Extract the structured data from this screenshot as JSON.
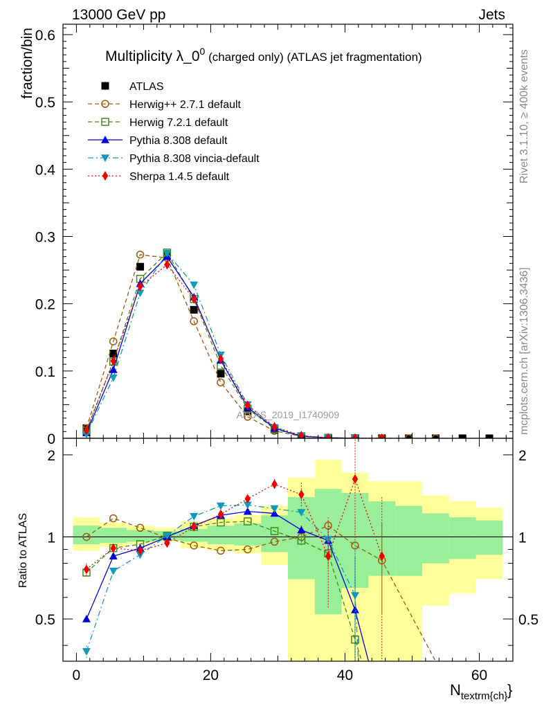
{
  "header": {
    "left": "13000 GeV pp",
    "right": "Jets"
  },
  "side_labels": {
    "rivet": "Rivet 3.1.10, ≥ 400k events",
    "mcplots": "mcplots.cern.ch [arXiv:1306.3436]"
  },
  "watermark": "ATLAS_2019_I1740909",
  "chart_data": [
    {
      "type": "line",
      "title": "Multiplicity λ_0",
      "title_sup": "0",
      "title_suffix": " (charged only) (ATLAS jet fragmentation)",
      "ylabel": "fraction/bin",
      "xlim": [
        -2,
        65
      ],
      "ylim": [
        0,
        0.6
      ],
      "yticks": [
        "0",
        "0.1",
        "0.2",
        "0.3",
        "0.4",
        "0.5",
        "0.6"
      ],
      "legend_position": "top-left",
      "series": [
        {
          "name": "ATLAS",
          "color": "#000000",
          "marker": "square-filled",
          "line": "none",
          "x": [
            1.5,
            5.5,
            9.5,
            13.5,
            17.5,
            21.5,
            25.5,
            29.5,
            33.5,
            37.5,
            41.5,
            45.5,
            49.5,
            53.5,
            57.5,
            61.5
          ],
          "y": [
            0.015,
            0.126,
            0.255,
            0.272,
            0.191,
            0.096,
            0.04,
            0.013,
            0.003,
            0.0008,
            0.0002,
            5e-05,
            2e-05,
            1e-05,
            5e-06,
            2e-06
          ]
        },
        {
          "name": "Herwig++ 2.7.1 default",
          "color": "#a05a0a",
          "marker": "circle-open",
          "line": "dashed",
          "x": [
            1.5,
            5.5,
            9.5,
            13.5,
            17.5,
            21.5,
            25.5,
            29.5,
            33.5,
            37.5,
            41.5,
            45.5,
            49.5,
            53.5
          ],
          "y": [
            0.015,
            0.144,
            0.273,
            0.268,
            0.174,
            0.083,
            0.032,
            0.011,
            0.003,
            0.0008,
            0.0002,
            5e-05,
            2e-05,
            1e-05
          ]
        },
        {
          "name": "Herwig 7.2.1 default",
          "color": "#3e8a1a",
          "marker": "square-open",
          "line": "dashed",
          "x": [
            1.5,
            5.5,
            9.5,
            13.5,
            17.5,
            21.5,
            25.5,
            29.5,
            33.5,
            37.5,
            41.5
          ],
          "y": [
            0.011,
            0.114,
            0.237,
            0.276,
            0.207,
            0.108,
            0.044,
            0.014,
            0.003,
            0.0007,
            0.0001
          ]
        },
        {
          "name": "Pythia 8.308 default",
          "color": "#0000dd",
          "marker": "triangle-up",
          "line": "solid",
          "x": [
            1.5,
            5.5,
            9.5,
            13.5,
            17.5,
            21.5,
            25.5,
            29.5,
            33.5,
            37.5,
            41.5
          ],
          "y": [
            0.008,
            0.102,
            0.23,
            0.27,
            0.21,
            0.116,
            0.046,
            0.015,
            0.003,
            0.0008,
            0.0001
          ]
        },
        {
          "name": "Pythia 8.308 vincia-default",
          "color": "#1199bb",
          "marker": "triangle-down",
          "line": "dashdot",
          "x": [
            1.5,
            5.5,
            9.5,
            13.5,
            17.5,
            21.5,
            25.5,
            29.5,
            33.5,
            37.5,
            41.5
          ],
          "y": [
            0.006,
            0.09,
            0.216,
            0.275,
            0.228,
            0.124,
            0.05,
            0.016,
            0.004,
            0.0009,
            0.0001
          ]
        },
        {
          "name": "Sherpa 1.4.5 default",
          "color": "#ee0000",
          "marker": "diamond",
          "line": "dotted",
          "x": [
            1.5,
            5.5,
            9.5,
            13.5,
            17.5,
            21.5,
            25.5,
            29.5,
            33.5,
            37.5,
            41.5,
            45.5
          ],
          "y": [
            0.012,
            0.115,
            0.226,
            0.258,
            0.207,
            0.118,
            0.049,
            0.017,
            0.004,
            0.0007,
            0.0003,
            5e-05
          ]
        }
      ]
    },
    {
      "type": "line",
      "ylabel": "Ratio to ATLAS",
      "xlabel": "N",
      "xlabel_sub": "textrm{ch}",
      "xlim": [
        -2,
        65
      ],
      "ylim": [
        0.35,
        2.3
      ],
      "xticks": [
        "0",
        "20",
        "40",
        "60"
      ],
      "yticks": [
        "0.5",
        "1",
        "2"
      ],
      "bands": {
        "edges": [
          -0.5,
          3.5,
          7.5,
          11.5,
          15.5,
          19.5,
          23.5,
          27.5,
          31.5,
          35.5,
          39.5,
          43.5,
          47.5,
          51.5,
          55.5,
          59.5,
          63.5
        ],
        "yellow_lo": [
          0.89,
          0.92,
          0.94,
          0.96,
          0.91,
          0.89,
          0.87,
          0.79,
          0.3,
          0.3,
          0.3,
          0.3,
          0.3,
          0.56,
          0.62,
          0.7
        ],
        "yellow_hi": [
          1.18,
          1.13,
          1.1,
          1.08,
          1.14,
          1.17,
          1.2,
          1.3,
          1.65,
          1.92,
          1.72,
          1.6,
          1.6,
          1.42,
          1.35,
          1.28
        ],
        "green_lo": [
          0.94,
          0.95,
          0.96,
          0.97,
          0.96,
          0.94,
          0.93,
          0.88,
          0.7,
          0.52,
          0.65,
          0.72,
          0.72,
          0.8,
          0.83,
          0.86
        ],
        "green_hi": [
          1.1,
          1.08,
          1.06,
          1.05,
          1.07,
          1.1,
          1.12,
          1.2,
          1.4,
          1.5,
          1.45,
          1.35,
          1.3,
          1.22,
          1.18,
          1.15
        ]
      },
      "series": [
        {
          "name": "Herwig++ 2.7.1 default",
          "color": "#a05a0a",
          "marker": "circle-open",
          "line": "dashed",
          "x": [
            1.5,
            5.5,
            9.5,
            13.5,
            17.5,
            21.5,
            25.5,
            29.5,
            33.5,
            37.5,
            41.5,
            45.5,
            53.5
          ],
          "y": [
            1.0,
            1.17,
            1.08,
            0.99,
            0.93,
            0.89,
            0.9,
            0.96,
            1.0,
            1.1,
            0.93,
            0.82,
            0.35
          ],
          "err": [
            0,
            0,
            0,
            0,
            0,
            0,
            0,
            0,
            0.04,
            0.08,
            0.25,
            0.3,
            0
          ]
        },
        {
          "name": "Herwig 7.2.1 default",
          "color": "#3e8a1a",
          "marker": "square-open",
          "line": "dashed",
          "x": [
            1.5,
            5.5,
            9.5,
            13.5,
            17.5,
            21.5,
            25.5,
            29.5,
            33.5,
            37.5,
            41.5,
            42.5
          ],
          "y": [
            0.74,
            0.91,
            0.94,
            1.01,
            1.09,
            1.13,
            1.14,
            1.05,
            0.97,
            0.87,
            0.42,
            0.35
          ],
          "err": [
            0.02,
            0,
            0,
            0,
            0,
            0,
            0,
            0,
            0.04,
            0.1,
            0.3,
            0
          ]
        },
        {
          "name": "Pythia 8.308 default",
          "color": "#0000dd",
          "marker": "triangle-up",
          "line": "solid",
          "x": [
            1.5,
            5.5,
            9.5,
            13.5,
            17.5,
            21.5,
            25.5,
            29.5,
            33.5,
            37.5,
            41.5,
            43.5
          ],
          "y": [
            0.5,
            0.85,
            0.91,
            1.0,
            1.1,
            1.2,
            1.24,
            1.22,
            1.06,
            0.97,
            0.54,
            0.35
          ],
          "err": [
            0,
            0,
            0,
            0,
            0,
            0,
            0,
            0,
            0.04,
            0.1,
            0.3,
            0
          ]
        },
        {
          "name": "Pythia 8.308 vincia-default",
          "color": "#1199bb",
          "marker": "triangle-down",
          "line": "dashdot",
          "x": [
            1.5,
            5.5,
            9.5,
            13.5,
            17.5,
            21.5,
            25.5,
            29.5,
            33.5,
            37.5,
            41.5,
            42.0
          ],
          "y": [
            0.38,
            0.75,
            0.86,
            1.01,
            1.19,
            1.3,
            1.31,
            1.27,
            1.23,
            0.98,
            0.61,
            0.35
          ],
          "err": [
            0.02,
            0,
            0,
            0,
            0,
            0,
            0,
            0,
            0.04,
            0.1,
            0.35,
            0
          ]
        },
        {
          "name": "Sherpa 1.4.5 default",
          "color": "#ee0000",
          "marker": "diamond",
          "line": "dotted",
          "x": [
            1.5,
            5.5,
            9.5,
            13.5,
            17.5,
            21.5,
            25.5,
            29.5,
            33.5,
            37.5,
            41.5,
            45.5
          ],
          "y": [
            0.76,
            0.91,
            0.89,
            0.95,
            1.09,
            1.21,
            1.38,
            1.56,
            1.43,
            0.85,
            1.63,
            0.85
          ],
          "err": [
            0.04,
            0,
            0,
            0,
            0,
            0,
            0.04,
            0.07,
            0.15,
            0.3,
            0.65,
            0.55
          ]
        }
      ]
    }
  ]
}
